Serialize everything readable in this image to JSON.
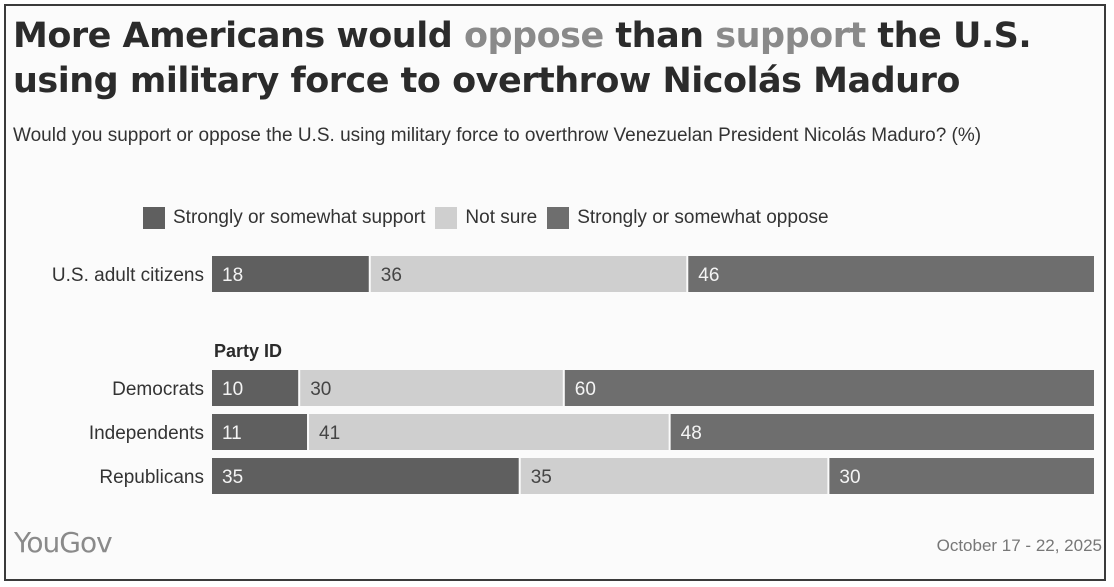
{
  "title": {
    "part1": "More Americans would ",
    "hl1": "oppose",
    "part2": " than ",
    "hl2": "support",
    "part3": " the U.S. using military force to overthrow Nicolás Maduro"
  },
  "subtitle": "Would you support or oppose the U.S. using military force to overthrow Venezuelan President Nicolás Maduro? (%)",
  "legend": [
    {
      "label": "Strongly or somewhat support",
      "color": "#5f5f5f"
    },
    {
      "label": "Not sure",
      "color": "#cfcfcf"
    },
    {
      "label": "Strongly or somewhat oppose",
      "color": "#6e6e6e"
    }
  ],
  "group_label": "Party ID",
  "source": "YouGov",
  "date": "October 17 - 22, 2025",
  "chart_data": {
    "type": "bar",
    "stacked": true,
    "orientation": "horizontal",
    "xlim": [
      0,
      100
    ],
    "categories": [
      "U.S. adult citizens",
      "Democrats",
      "Independents",
      "Republicans"
    ],
    "series": [
      {
        "name": "Strongly or somewhat support",
        "values": [
          18,
          10,
          11,
          35
        ],
        "color": "#5f5f5f"
      },
      {
        "name": "Not sure",
        "values": [
          36,
          30,
          41,
          35
        ],
        "color": "#cfcfcf"
      },
      {
        "name": "Strongly or somewhat oppose",
        "values": [
          46,
          60,
          48,
          30
        ],
        "color": "#6e6e6e"
      }
    ]
  }
}
